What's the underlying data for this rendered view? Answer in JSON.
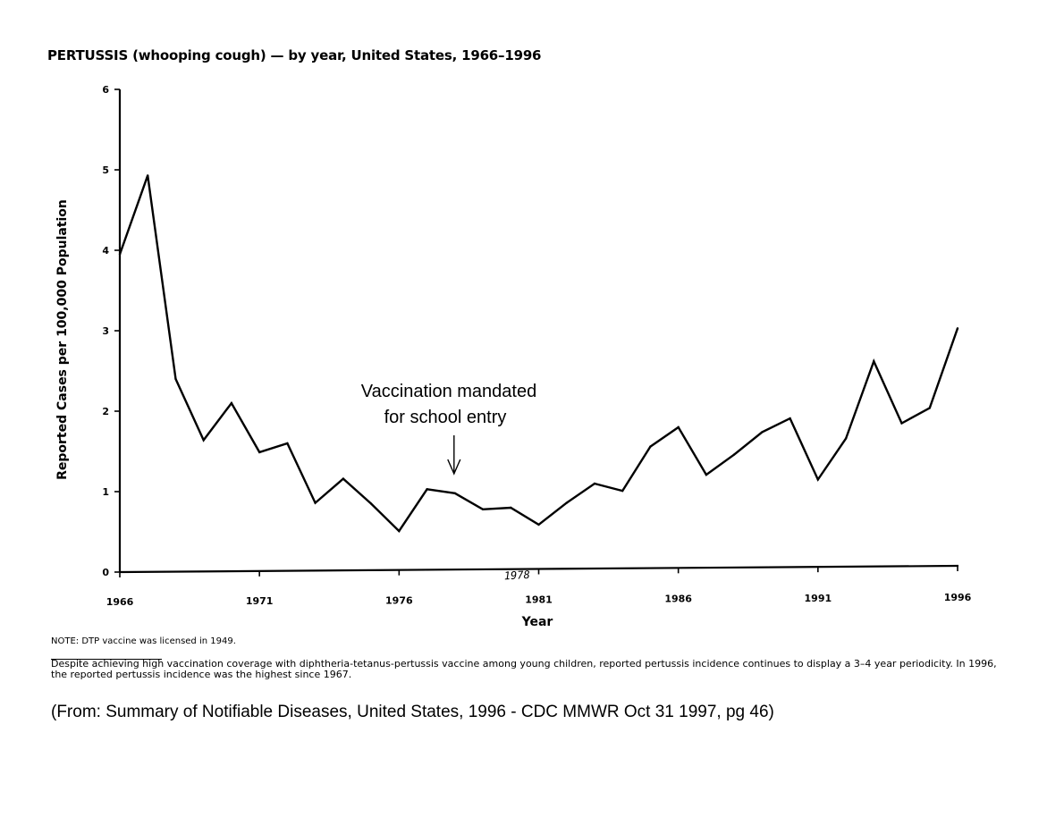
{
  "chart_data": {
    "type": "line",
    "title": "PERTUSSIS (whooping cough) — by year, United States, 1966–1996",
    "xlabel": "Year",
    "ylabel": "Reported Cases per 100,000 Population",
    "xlim": [
      1966,
      1996
    ],
    "ylim": [
      0,
      6
    ],
    "x_ticks": [
      1966,
      1971,
      1976,
      1981,
      1986,
      1991,
      1996
    ],
    "x_tick_labels": [
      "1966",
      "1971",
      "1976",
      "1981",
      "1986",
      "1991",
      "1996"
    ],
    "y_ticks": [
      0,
      1,
      2,
      3,
      4,
      5,
      6
    ],
    "y_tick_labels": [
      "0",
      "1",
      "2",
      "3",
      "4",
      "5",
      "6"
    ],
    "grid": false,
    "series": [
      {
        "name": "",
        "x": [
          1966,
          1967,
          1968,
          1969,
          1970,
          1971,
          1972,
          1973,
          1974,
          1975,
          1976,
          1977,
          1978,
          1979,
          1980,
          1981,
          1982,
          1983,
          1984,
          1985,
          1986,
          1987,
          1988,
          1989,
          1990,
          1991,
          1992,
          1993,
          1994,
          1995,
          1996
        ],
        "y": [
          3.95,
          4.93,
          2.4,
          1.64,
          2.1,
          1.49,
          1.6,
          0.86,
          1.16,
          0.85,
          0.51,
          1.03,
          0.98,
          0.78,
          0.8,
          0.59,
          0.86,
          1.1,
          1.01,
          1.56,
          1.8,
          1.21,
          1.46,
          1.74,
          1.91,
          1.15,
          1.66,
          2.62,
          1.85,
          2.04,
          3.03
        ]
      }
    ],
    "annotations": [
      {
        "text_line1": "Vaccination mandated",
        "text_line2": "for school entry",
        "x": 1978,
        "handwritten_tick_label": "1978"
      }
    ]
  },
  "note": "NOTE: DTP vaccine was licensed in 1949.",
  "caption": "Despite achieving high vaccination coverage with diphtheria-tetanus-pertussis vaccine among young children, reported pertussis incidence continues to display a 3–4 year periodicity. In 1996, the reported pertussis incidence was the highest since 1967.",
  "source": "(From: Summary of Notifiable Diseases, United States, 1996 - CDC MMWR Oct 31 1997, pg 46)"
}
